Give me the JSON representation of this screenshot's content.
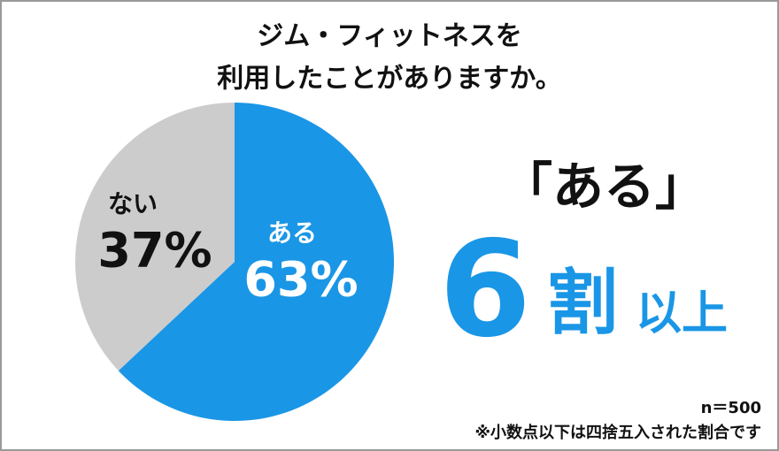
{
  "chart_data": {
    "type": "pie",
    "title": [
      "ジム・フィットネスを",
      "利用したことがありますか。"
    ],
    "categories": [
      "ある",
      "ない"
    ],
    "values": [
      63,
      37
    ],
    "value_labels": [
      "63%",
      "37%"
    ],
    "colors": [
      "#1a96e6",
      "#cccccc"
    ],
    "label_colors": [
      "#ffffff",
      "#111111"
    ],
    "annotations": [
      "「ある」",
      "6",
      "割",
      "以上"
    ],
    "annotation_color": "#1a96e6",
    "sample_note": "n＝500",
    "footnote": "※小数点以下は四捨五入された割合です"
  }
}
